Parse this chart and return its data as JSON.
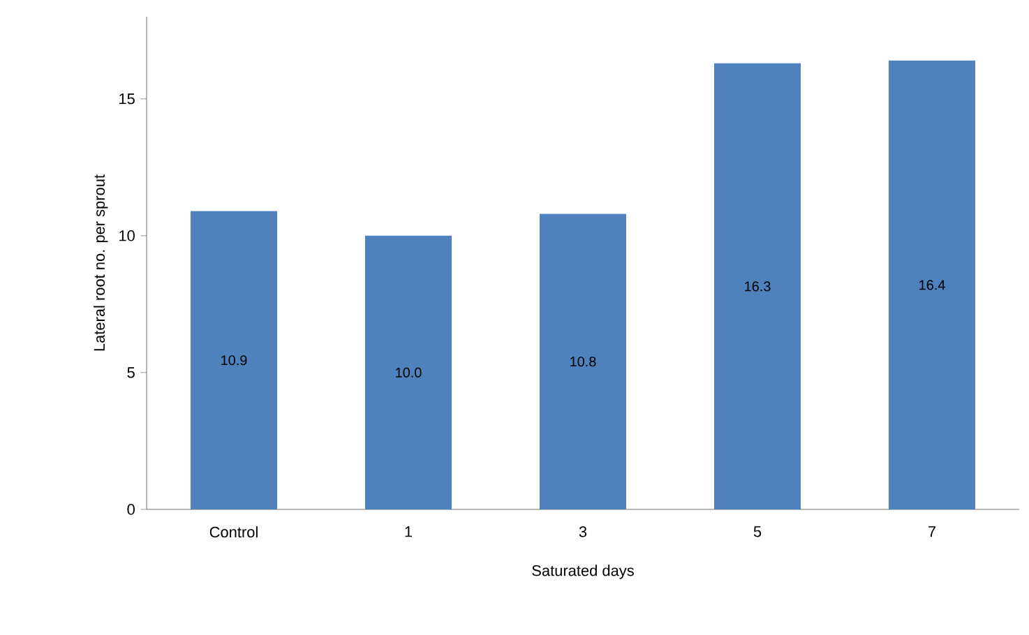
{
  "chart_data": {
    "type": "bar",
    "xlabel": "Saturated days",
    "ylabel": "Lateral root no. per sprout",
    "categories": [
      "Control",
      "1",
      "3",
      "5",
      "7"
    ],
    "values": [
      10.9,
      10.0,
      10.8,
      16.3,
      16.4
    ],
    "value_labels": [
      "10.9",
      "10.0",
      "10.8",
      "16.3",
      "16.4"
    ],
    "color": "#4f81bd",
    "ylim": [
      0,
      18
    ],
    "yticks": [
      0,
      5,
      10,
      15
    ],
    "grid": false
  }
}
